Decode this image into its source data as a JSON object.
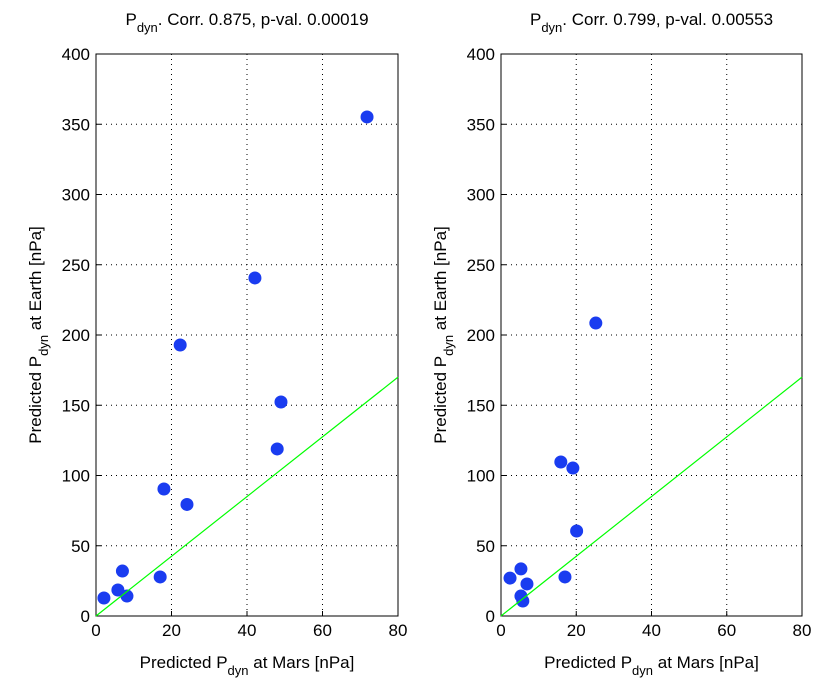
{
  "chart_data": [
    {
      "type": "scatter",
      "title": {
        "main": "P",
        "sub": "dyn",
        "rest": ". Corr. 0.875, p-val. 0.00019"
      },
      "xlabel": {
        "main": "Predicted P",
        "sub": "dyn",
        "rest": " at Mars [nPa]"
      },
      "ylabel": {
        "main": "Predicted P",
        "sub": "dyn",
        "rest": " at Earth [nPa]"
      },
      "xlim": [
        0,
        80
      ],
      "ylim": [
        0,
        400
      ],
      "xticks": [
        0,
        20,
        40,
        60,
        80
      ],
      "yticks": [
        0,
        50,
        100,
        150,
        200,
        250,
        300,
        350,
        400
      ],
      "grid": true,
      "series": [
        {
          "type": "scatter",
          "color": "#1a3cf0",
          "x": [
            2.1,
            5.8,
            7.0,
            8.2,
            17,
            18,
            22.3,
            24.1,
            42.1,
            48,
            49,
            71.8
          ],
          "values": [
            12.8,
            18.5,
            32,
            14.2,
            27.8,
            90.4,
            192.9,
            79.4,
            240.6,
            118.9,
            152.3,
            355.2
          ]
        },
        {
          "type": "line",
          "color": "#00ff00",
          "x": [
            0,
            80
          ],
          "values": [
            0,
            170
          ]
        }
      ]
    },
    {
      "type": "scatter",
      "title": {
        "main": "P",
        "sub": "dyn",
        "rest": ". Corr. 0.799, p-val. 0.00553"
      },
      "xlabel": {
        "main": "Predicted P",
        "sub": "dyn",
        "rest": " at Mars [nPa]"
      },
      "ylabel": {
        "main": "Predicted P",
        "sub": "dyn",
        "rest": " at Earth [nPa]"
      },
      "xlim": [
        0,
        80
      ],
      "ylim": [
        0,
        400
      ],
      "xticks": [
        0,
        20,
        40,
        60,
        80
      ],
      "yticks": [
        0,
        50,
        100,
        150,
        200,
        250,
        300,
        350,
        400
      ],
      "grid": true,
      "series": [
        {
          "type": "scatter",
          "color": "#1a3cf0",
          "x": [
            2.4,
            5.3,
            5.3,
            5.8,
            6.9,
            15.9,
            17,
            19.1,
            20.1,
            25.2
          ],
          "values": [
            27,
            33.5,
            14.2,
            10.7,
            22.8,
            109.6,
            27.8,
            105.3,
            60.5,
            208.5
          ]
        },
        {
          "type": "line",
          "color": "#00ff00",
          "x": [
            0,
            80
          ],
          "values": [
            0,
            170
          ]
        }
      ]
    }
  ]
}
